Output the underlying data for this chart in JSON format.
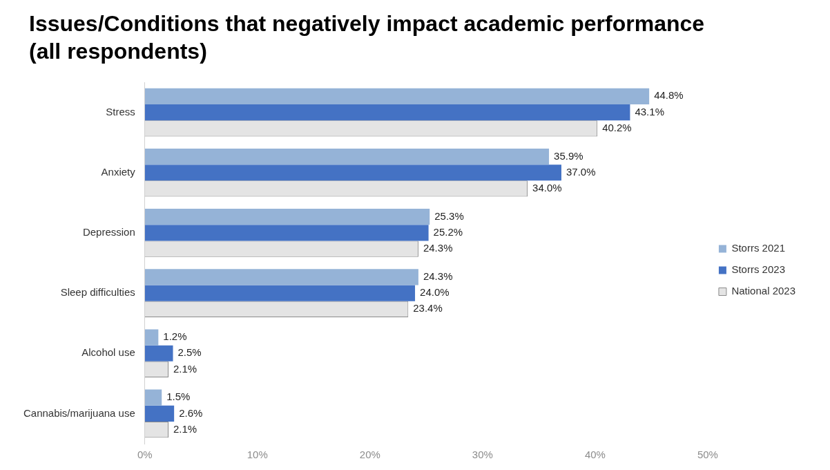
{
  "chart_data": {
    "type": "bar",
    "orientation": "horizontal",
    "title": "Issues/Conditions that negatively impact academic performance (all respondents)",
    "categories": [
      "Stress",
      "Anxiety",
      "Depression",
      "Sleep difficulties",
      "Alcohol use",
      "Cannabis/marijuana use"
    ],
    "series": [
      {
        "name": "Storrs 2021",
        "color": "#95b3d7",
        "values": [
          44.8,
          35.9,
          25.3,
          24.3,
          1.2,
          1.5
        ],
        "value_labels": [
          "44.8%",
          "35.9%",
          "25.3%",
          "24.3%",
          "1.2%",
          "1.5%"
        ]
      },
      {
        "name": "Storrs 2023",
        "color": "#4472c4",
        "values": [
          43.1,
          37.0,
          25.2,
          24.0,
          2.5,
          2.6
        ],
        "value_labels": [
          "43.1%",
          "37.0%",
          "25.2%",
          "24.0%",
          "2.5%",
          "2.6%"
        ]
      },
      {
        "name": "National 2023",
        "color": "#e4e4e4",
        "values": [
          40.2,
          34.0,
          24.3,
          23.4,
          2.1,
          2.1
        ],
        "value_labels": [
          "40.2%",
          "34.0%",
          "24.3%",
          "23.4%",
          "2.1%",
          "2.1%"
        ]
      }
    ],
    "xlim": [
      0,
      50
    ],
    "xticks": [
      {
        "value": 0,
        "label": "0%"
      },
      {
        "value": 10,
        "label": "10%"
      },
      {
        "value": 20,
        "label": "20%"
      },
      {
        "value": 30,
        "label": "30%"
      },
      {
        "value": 40,
        "label": "40%"
      },
      {
        "value": 50,
        "label": "50%"
      }
    ],
    "grid": false,
    "legend": "right"
  }
}
